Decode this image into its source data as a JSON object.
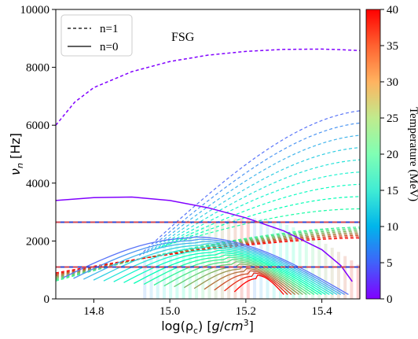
{
  "chart_data": {
    "type": "line",
    "annotation": "FSG",
    "xlabel": "log(ρ_c) [g/cm³]",
    "ylabel": "ν_n [Hz]",
    "xlim": [
      14.7,
      15.5
    ],
    "ylim": [
      0,
      10000
    ],
    "xticks": [
      14.8,
      15.0,
      15.2,
      15.4
    ],
    "xtick_labels": [
      "14.8",
      "15.0",
      "15.2",
      "15.4"
    ],
    "yticks": [
      0,
      2000,
      4000,
      6000,
      8000,
      10000
    ],
    "ytick_labels": [
      "0",
      "2000",
      "4000",
      "6000",
      "8000",
      "10000"
    ],
    "legend": {
      "location": "upper-left",
      "entries": [
        {
          "label": "n=1",
          "style": "dashed"
        },
        {
          "label": "n=0",
          "style": "solid"
        }
      ]
    },
    "colorbar": {
      "label": "Temperature (MeV)",
      "min": 0,
      "max": 40,
      "ticks": [
        0,
        5,
        10,
        15,
        20,
        25,
        30,
        35,
        40
      ],
      "tick_labels": [
        "0",
        "5",
        "10",
        "15",
        "20",
        "25",
        "30",
        "35",
        "40"
      ],
      "colormap": "rainbow"
    },
    "reference_lines": [
      {
        "y": 2650,
        "colors": [
          "#3344cc",
          "#cc4455"
        ],
        "style": "dashed"
      },
      {
        "y": 1100,
        "colors": [
          "#3344cc",
          "#cc4455"
        ],
        "style": "dashed"
      }
    ],
    "series": [
      {
        "mode": "n=1",
        "temperature": 0,
        "x": [
          14.7,
          14.75,
          14.8,
          14.9,
          15.0,
          15.1,
          15.2,
          15.3,
          15.4,
          15.45,
          15.5
        ],
        "y": [
          6000,
          6800,
          7300,
          7850,
          8200,
          8420,
          8550,
          8620,
          8630,
          8610,
          8580
        ]
      },
      {
        "mode": "n=0",
        "temperature": 0,
        "x": [
          14.7,
          14.8,
          14.9,
          15.0,
          15.1,
          15.2,
          15.3,
          15.4,
          15.45,
          15.48
        ],
        "y": [
          3400,
          3500,
          3520,
          3400,
          3150,
          2800,
          2350,
          1700,
          1150,
          600
        ]
      }
    ],
    "family_n1": {
      "temperatures": [
        6,
        8,
        10,
        12,
        14,
        16,
        18,
        20,
        22,
        24,
        26,
        28,
        30,
        32,
        34,
        36,
        38,
        40
      ]
    },
    "family_n0": {
      "temperatures": [
        6,
        8,
        10,
        12,
        14,
        16,
        18,
        20,
        22,
        24,
        26,
        28,
        30,
        32,
        34,
        36,
        38,
        40
      ]
    }
  }
}
